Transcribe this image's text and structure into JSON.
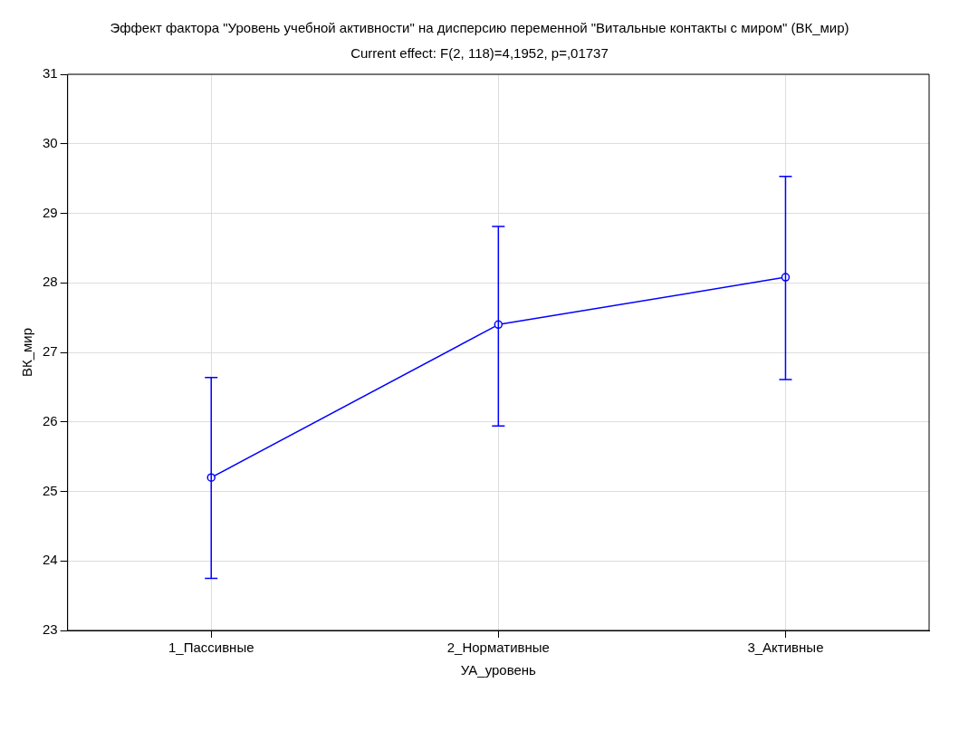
{
  "chart_data": {
    "type": "line",
    "title": "Эффект фактора \"Уровень учебной активности\" на дисперсию переменной \"Витальные контакты с миром\" (ВК_мир)",
    "subtitle": "Current effect: F(2, 118)=4,1952, p=,01737",
    "xlabel": "УА_уровень",
    "ylabel": "ВК_мир",
    "categories": [
      "1_Пассивные",
      "2_Нормативные",
      "3_Активные"
    ],
    "series": [
      {
        "color": "#0000ff",
        "values": [
          25.2,
          27.4,
          28.08
        ],
        "errors": [
          [
            23.75,
            26.64
          ],
          [
            25.94,
            28.81
          ],
          [
            26.61,
            29.53
          ]
        ]
      }
    ],
    "ylim": [
      23,
      31
    ],
    "yticks": [
      23,
      24,
      25,
      26,
      27,
      28,
      29,
      30,
      31
    ],
    "grid": true,
    "marker": "circle",
    "line_style": "solid"
  }
}
